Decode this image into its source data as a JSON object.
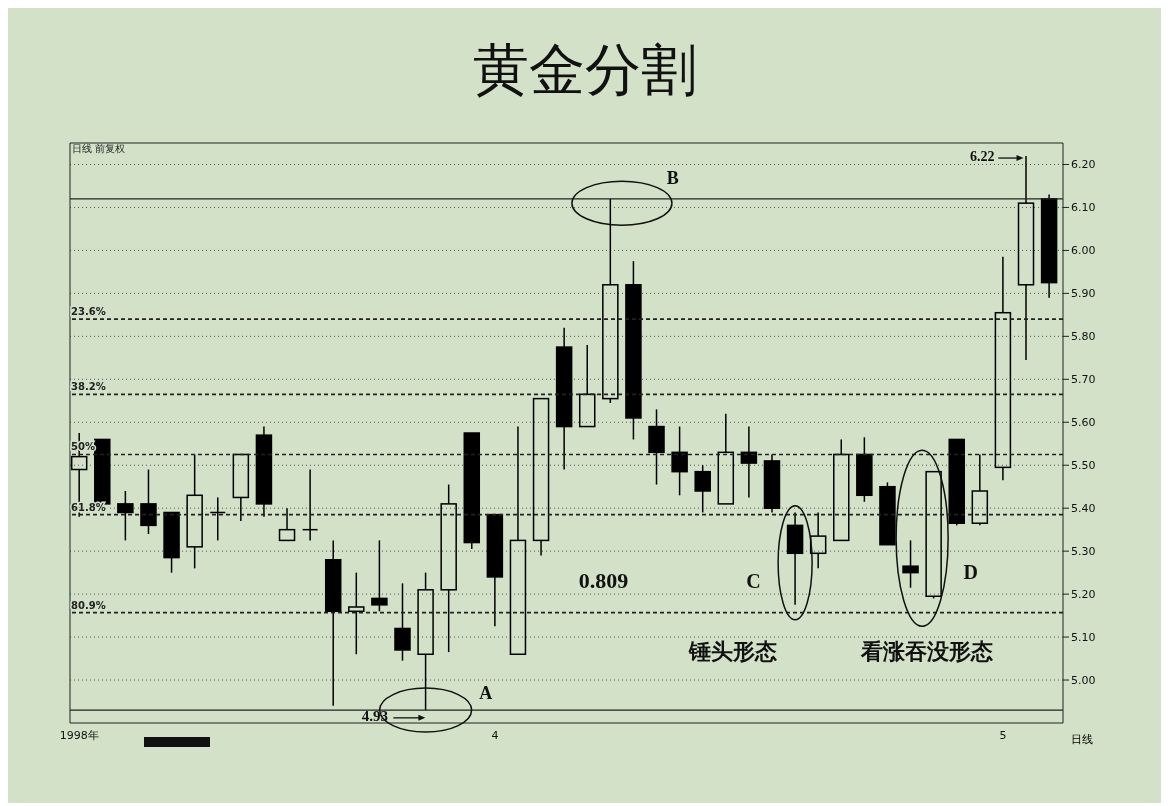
{
  "chart_data": {
    "type": "candlestick",
    "title": "黄金分割",
    "subtitle": "日线 前复权",
    "categories": [
      "1998年",
      null,
      null,
      null,
      null,
      null,
      null,
      null,
      null,
      null,
      null,
      null,
      null,
      null,
      null,
      null,
      null,
      null,
      "4",
      null,
      null,
      null,
      null,
      null,
      null,
      null,
      null,
      null,
      null,
      null,
      null,
      null,
      null,
      null,
      null,
      null,
      null,
      null,
      null,
      null,
      "5",
      null,
      null
    ],
    "color": "#000000",
    "ohlc": [
      [
        5.49,
        5.575,
        5.38,
        5.52
      ],
      [
        5.56,
        5.56,
        5.4,
        5.41
      ],
      [
        5.41,
        5.44,
        5.325,
        5.39
      ],
      [
        5.41,
        5.49,
        5.34,
        5.36
      ],
      [
        5.39,
        5.39,
        5.25,
        5.285
      ],
      [
        5.31,
        5.525,
        5.26,
        5.43
      ],
      [
        5.39,
        5.425,
        5.325,
        5.39
      ],
      [
        5.425,
        5.525,
        5.37,
        5.525
      ],
      [
        5.57,
        5.59,
        5.38,
        5.41
      ],
      [
        5.325,
        5.4,
        5.325,
        5.35
      ],
      [
        5.35,
        5.49,
        5.325,
        5.35
      ],
      [
        5.28,
        5.325,
        4.94,
        5.16
      ],
      [
        5.16,
        5.25,
        5.06,
        5.17
      ],
      [
        5.19,
        5.325,
        5.16,
        5.175
      ],
      [
        5.12,
        5.225,
        5.045,
        5.07
      ],
      [
        5.06,
        5.25,
        4.93,
        5.21
      ],
      [
        5.21,
        5.455,
        5.065,
        5.41
      ],
      [
        5.575,
        5.575,
        5.305,
        5.32
      ],
      [
        5.385,
        5.385,
        5.125,
        5.24
      ],
      [
        5.06,
        5.59,
        5.06,
        5.325
      ],
      [
        5.325,
        5.655,
        5.29,
        5.655
      ],
      [
        5.775,
        5.82,
        5.49,
        5.59
      ],
      [
        5.59,
        5.78,
        5.59,
        5.665
      ],
      [
        5.655,
        6.12,
        5.645,
        5.92
      ],
      [
        5.92,
        5.975,
        5.56,
        5.61
      ],
      [
        5.59,
        5.63,
        5.455,
        5.53
      ],
      [
        5.53,
        5.59,
        5.43,
        5.485
      ],
      [
        5.485,
        5.5,
        5.39,
        5.44
      ],
      [
        5.41,
        5.62,
        5.41,
        5.53
      ],
      [
        5.53,
        5.59,
        5.425,
        5.505
      ],
      [
        5.51,
        5.525,
        5.39,
        5.4
      ],
      [
        5.36,
        5.39,
        5.175,
        5.295
      ],
      [
        5.295,
        5.39,
        5.26,
        5.335
      ],
      [
        5.325,
        5.56,
        5.325,
        5.525
      ],
      [
        5.525,
        5.565,
        5.415,
        5.43
      ],
      [
        5.45,
        5.46,
        5.315,
        5.315
      ],
      [
        5.265,
        5.325,
        5.215,
        5.25
      ],
      [
        5.195,
        5.485,
        5.19,
        5.485
      ],
      [
        5.56,
        5.56,
        5.36,
        5.365
      ],
      [
        5.365,
        5.525,
        5.36,
        5.44
      ],
      [
        5.495,
        5.985,
        5.465,
        5.855
      ],
      [
        5.92,
        6.22,
        5.745,
        6.11
      ],
      [
        6.12,
        6.13,
        5.89,
        5.925
      ]
    ],
    "ylim": [
      4.9,
      6.25
    ],
    "yticks": [
      {
        "value": 5.0,
        "label": "5.00"
      },
      {
        "value": 5.1,
        "label": "5.10"
      },
      {
        "value": 5.2,
        "label": "5.20"
      },
      {
        "value": 5.3,
        "label": "5.30"
      },
      {
        "value": 5.4,
        "label": "5.40"
      },
      {
        "value": 5.5,
        "label": "5.50"
      },
      {
        "value": 5.6,
        "label": "5.60"
      },
      {
        "value": 5.7,
        "label": "5.70"
      },
      {
        "value": 5.8,
        "label": "5.80"
      },
      {
        "value": 5.9,
        "label": "5.90"
      },
      {
        "value": 6.0,
        "label": "6.00"
      },
      {
        "value": 6.1,
        "label": "6.10"
      },
      {
        "value": 6.2,
        "label": "6.20"
      }
    ],
    "grid": "y",
    "ref_lines": [
      {
        "axis": "y",
        "value": 6.12,
        "label": null,
        "line_style": "solid"
      },
      {
        "axis": "y",
        "value": 4.93,
        "label": null,
        "line_style": "solid"
      },
      {
        "axis": "y",
        "value": 5.84,
        "label": null,
        "line_style": "dashed"
      },
      {
        "axis": "y",
        "value": 5.665,
        "label": null,
        "line_style": "dashed"
      },
      {
        "axis": "y",
        "value": 5.525,
        "label": null,
        "line_style": "dashed"
      },
      {
        "axis": "y",
        "value": 5.385,
        "label": null,
        "line_style": "dashed"
      },
      {
        "axis": "y",
        "value": 5.157,
        "label": null,
        "line_style": "dashed"
      }
    ],
    "annotations": [
      "4.93",
      "A",
      "B",
      "6.22",
      "0.809",
      "C",
      "D",
      "锤头形态",
      "看涨吞没形态",
      {
        "text": "23.6%",
        "y": 5.84
      },
      {
        "text": "38.2%",
        "y": 5.665
      },
      {
        "text": "50%",
        "y": 5.525
      },
      {
        "text": "61.8%",
        "y": 5.385
      },
      {
        "text": "80.9%",
        "y": 5.157
      },
      "日线"
    ]
  }
}
